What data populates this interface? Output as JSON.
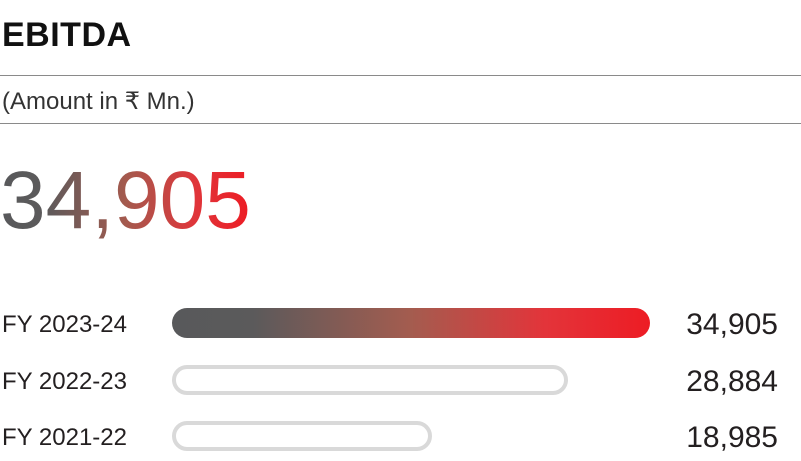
{
  "header": {
    "title": "EBITDA",
    "subtitle": "(Amount in ₹ Mn.)"
  },
  "highlight": {
    "value": "34,905"
  },
  "colors": {
    "gradient_start": "#58595b",
    "gradient_end": "#ed1c24",
    "outline": "#d9d9d9",
    "text": "#231f20"
  },
  "chart_data": {
    "type": "bar",
    "orientation": "horizontal",
    "title": "EBITDA",
    "subtitle": "(Amount in ₹ Mn.)",
    "categories": [
      "FY 2023-24",
      "FY 2022-23",
      "FY 2021-22"
    ],
    "values": [
      34905,
      28884,
      18985
    ],
    "value_labels": [
      "34,905",
      "28,884",
      "18,985"
    ],
    "xlim": [
      0,
      34905
    ],
    "grid": false,
    "legend": "none"
  }
}
